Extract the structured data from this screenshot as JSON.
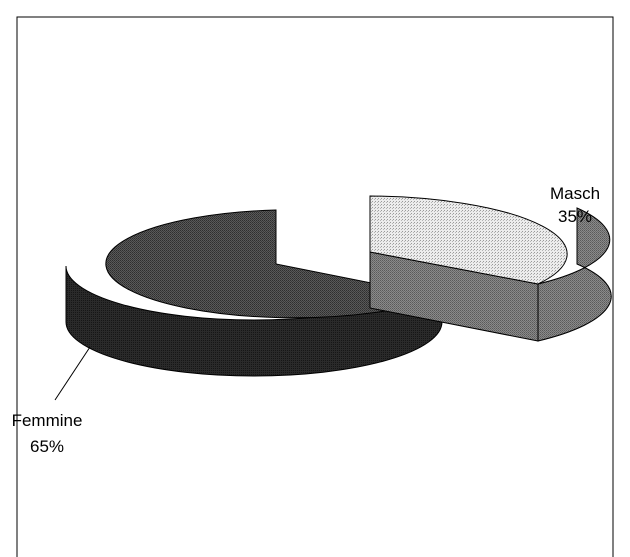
{
  "chart_data": {
    "type": "pie",
    "title": "",
    "categories": [
      "Masch",
      "Femmine"
    ],
    "values": [
      35,
      65
    ],
    "value_labels": [
      "35%",
      "65%"
    ],
    "exploded": true,
    "three_d": true,
    "colors": {
      "Masch_top": "#d8d8d8",
      "Masch_side": "#7a7a7a",
      "Femmine_top": "#4a4a4a",
      "Femmine_side": "#2a2a2a"
    }
  }
}
